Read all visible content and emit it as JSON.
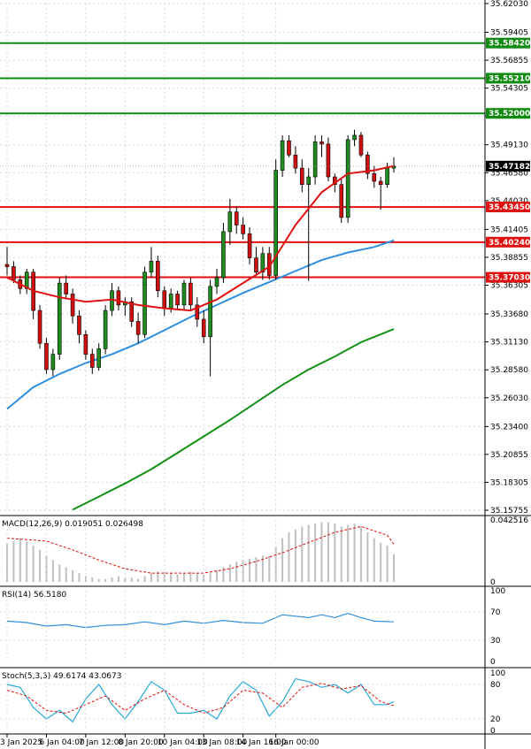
{
  "chart_data": {
    "type": "candlestick",
    "main": {
      "y_ticks": [
        "35.62030",
        "35.59405",
        "35.56855",
        "35.54305",
        "35.51755",
        "35.49130",
        "35.46580",
        "35.44030",
        "35.41405",
        "35.38855",
        "35.36305",
        "35.33680",
        "35.31130",
        "35.28580",
        "35.26030",
        "35.23400",
        "35.20855",
        "35.18305",
        "35.15755"
      ],
      "ylim": [
        35.15755,
        35.6203
      ],
      "current_price": "35.47182",
      "green_levels": [
        "35.58420",
        "35.55210",
        "35.52000"
      ],
      "red_levels": [
        "35.43450",
        "35.40240",
        "35.37030"
      ],
      "candles": [
        [
          35.382,
          35.398,
          35.372,
          35.38
        ],
        [
          35.38,
          35.385,
          35.365,
          35.368
        ],
        [
          35.368,
          35.372,
          35.355,
          35.36
        ],
        [
          35.36,
          35.378,
          35.355,
          35.375
        ],
        [
          35.375,
          35.378,
          35.332,
          35.34
        ],
        [
          35.34,
          35.345,
          35.305,
          35.31
        ],
        [
          35.31,
          35.315,
          35.282,
          35.286
        ],
        [
          35.286,
          35.305,
          35.28,
          35.3
        ],
        [
          35.3,
          35.37,
          35.295,
          35.365
        ],
        [
          35.365,
          35.372,
          35.35,
          35.355
        ],
        [
          35.355,
          35.36,
          35.328,
          35.335
        ],
        [
          35.335,
          35.34,
          35.31,
          35.318
        ],
        [
          35.318,
          35.322,
          35.295,
          35.3
        ],
        [
          35.3,
          35.305,
          35.282,
          35.288
        ],
        [
          35.288,
          35.31,
          35.285,
          35.305
        ],
        [
          35.305,
          35.345,
          35.3,
          35.34
        ],
        [
          35.34,
          35.365,
          35.335,
          35.358
        ],
        [
          35.358,
          35.362,
          35.34,
          35.345
        ],
        [
          35.345,
          35.352,
          35.335,
          35.348
        ],
        [
          35.348,
          35.352,
          35.325,
          35.33
        ],
        [
          35.33,
          35.338,
          35.31,
          35.318
        ],
        [
          35.318,
          35.38,
          35.315,
          35.375
        ],
        [
          35.375,
          35.398,
          35.37,
          35.385
        ],
        [
          35.385,
          35.39,
          35.352,
          35.358
        ],
        [
          35.358,
          35.362,
          35.335,
          35.342
        ],
        [
          35.342,
          35.36,
          35.338,
          35.355
        ],
        [
          35.355,
          35.358,
          35.34,
          35.345
        ],
        [
          35.345,
          35.368,
          35.34,
          35.365
        ],
        [
          35.365,
          35.37,
          35.34,
          35.345
        ],
        [
          35.345,
          35.352,
          35.325,
          35.332
        ],
        [
          35.332,
          35.34,
          35.31,
          35.316
        ],
        [
          35.316,
          35.368,
          35.28,
          35.362
        ],
        [
          35.362,
          35.378,
          35.355,
          35.37
        ],
        [
          35.37,
          35.42,
          35.365,
          35.412
        ],
        [
          35.412,
          35.442,
          35.4,
          35.43
        ],
        [
          35.43,
          35.435,
          35.41,
          35.418
        ],
        [
          35.418,
          35.425,
          35.405,
          35.41
        ],
        [
          35.41,
          35.416,
          35.382,
          35.388
        ],
        [
          35.388,
          35.398,
          35.372,
          35.375
        ],
        [
          35.375,
          35.398,
          35.368,
          35.392
        ],
        [
          35.392,
          35.398,
          35.368,
          35.372
        ],
        [
          35.372,
          35.478,
          35.368,
          35.468
        ],
        [
          35.468,
          35.5,
          35.462,
          35.495
        ],
        [
          35.495,
          35.5,
          35.48,
          35.482
        ],
        [
          35.482,
          35.49,
          35.465,
          35.47
        ],
        [
          35.47,
          35.478,
          35.448,
          35.455
        ],
        [
          35.455,
          35.47,
          35.367,
          35.462
        ],
        [
          35.462,
          35.5,
          35.455,
          35.494
        ],
        [
          35.494,
          35.5,
          35.48,
          35.492
        ],
        [
          35.492,
          35.498,
          35.458,
          35.462
        ],
        [
          35.462,
          35.465,
          35.448,
          35.455
        ],
        [
          35.455,
          35.46,
          35.42,
          35.425
        ],
        [
          35.425,
          35.5,
          35.42,
          35.496
        ],
        [
          35.496,
          35.505,
          35.49,
          35.5
        ],
        [
          35.5,
          35.503,
          35.48,
          35.482
        ],
        [
          35.482,
          35.485,
          35.46,
          35.465
        ],
        [
          35.465,
          35.472,
          35.452,
          35.458
        ],
        [
          35.458,
          35.462,
          35.432,
          35.455
        ],
        [
          35.455,
          35.475,
          35.452,
          35.47
        ],
        [
          35.47,
          35.48,
          35.466,
          35.4718
        ]
      ],
      "ema_fast": [
        [
          0,
          35.37
        ],
        [
          4,
          35.358
        ],
        [
          8,
          35.352
        ],
        [
          12,
          35.348
        ],
        [
          16,
          35.35
        ],
        [
          20,
          35.345
        ],
        [
          24,
          35.342
        ],
        [
          28,
          35.34
        ],
        [
          32,
          35.35
        ],
        [
          36,
          35.365
        ],
        [
          40,
          35.38
        ],
        [
          44,
          35.418
        ],
        [
          48,
          35.448
        ],
        [
          52,
          35.465
        ],
        [
          56,
          35.468
        ],
        [
          59,
          35.472
        ]
      ],
      "ema_mid": [
        [
          0,
          35.25
        ],
        [
          4,
          35.27
        ],
        [
          8,
          35.282
        ],
        [
          12,
          35.292
        ],
        [
          16,
          35.3
        ],
        [
          20,
          35.31
        ],
        [
          24,
          35.322
        ],
        [
          28,
          35.334
        ],
        [
          32,
          35.345
        ],
        [
          36,
          35.356
        ],
        [
          40,
          35.366
        ],
        [
          44,
          35.376
        ],
        [
          48,
          35.386
        ],
        [
          52,
          35.393
        ],
        [
          56,
          35.398
        ],
        [
          59,
          35.404
        ]
      ],
      "ema_slow": [
        [
          10,
          35.158
        ],
        [
          14,
          35.17
        ],
        [
          18,
          35.182
        ],
        [
          22,
          35.195
        ],
        [
          26,
          35.21
        ],
        [
          30,
          35.225
        ],
        [
          34,
          35.24
        ],
        [
          38,
          35.256
        ],
        [
          42,
          35.272
        ],
        [
          46,
          35.286
        ],
        [
          50,
          35.298
        ],
        [
          54,
          35.311
        ],
        [
          59,
          35.323
        ]
      ]
    },
    "macd": {
      "label": "MACD(12,26,9) 0.019051 0.026498",
      "y_ticks": [
        "0.042516",
        "0"
      ],
      "ylim": [
        0,
        0.042516
      ],
      "hist": [
        0.026,
        0.028,
        0.03,
        0.028,
        0.025,
        0.022,
        0.018,
        0.015,
        0.012,
        0.01,
        0.008,
        0.006,
        0.004,
        0.003,
        0.002,
        0.002,
        0.003,
        0.004,
        0.003,
        0.003,
        0.002,
        0.004,
        0.006,
        0.007,
        0.007,
        0.006,
        0.005,
        0.006,
        0.007,
        0.006,
        0.005,
        0.006,
        0.008,
        0.01,
        0.012,
        0.014,
        0.015,
        0.016,
        0.017,
        0.018,
        0.018,
        0.024,
        0.03,
        0.034,
        0.036,
        0.038,
        0.039,
        0.04,
        0.041,
        0.041,
        0.04,
        0.038,
        0.039,
        0.04,
        0.038,
        0.034,
        0.03,
        0.027,
        0.025,
        0.019
      ],
      "signal": [
        [
          0,
          0.03
        ],
        [
          6,
          0.028
        ],
        [
          10,
          0.022
        ],
        [
          14,
          0.015
        ],
        [
          18,
          0.009
        ],
        [
          22,
          0.006
        ],
        [
          26,
          0.006
        ],
        [
          30,
          0.006
        ],
        [
          34,
          0.009
        ],
        [
          38,
          0.014
        ],
        [
          42,
          0.02
        ],
        [
          46,
          0.027
        ],
        [
          50,
          0.034
        ],
        [
          54,
          0.038
        ],
        [
          58,
          0.032
        ],
        [
          59,
          0.026
        ]
      ]
    },
    "rsi": {
      "label": "RSI(14) 56.5180",
      "y_ticks": [
        "100",
        "70",
        "30",
        "0"
      ],
      "ylim": [
        0,
        100
      ],
      "values": [
        [
          0,
          57
        ],
        [
          3,
          55
        ],
        [
          6,
          50
        ],
        [
          9,
          52
        ],
        [
          12,
          48
        ],
        [
          15,
          51
        ],
        [
          18,
          52
        ],
        [
          21,
          56
        ],
        [
          24,
          52
        ],
        [
          27,
          57
        ],
        [
          30,
          54
        ],
        [
          33,
          58
        ],
        [
          36,
          55
        ],
        [
          39,
          54
        ],
        [
          42,
          66
        ],
        [
          44,
          64
        ],
        [
          46,
          62
        ],
        [
          48,
          66
        ],
        [
          50,
          62
        ],
        [
          52,
          68
        ],
        [
          54,
          62
        ],
        [
          56,
          57
        ],
        [
          59,
          56
        ]
      ]
    },
    "stoch": {
      "label": "Stoch(5,3,3) 49.6174 43.0673",
      "y_ticks": [
        "100",
        "80",
        "20",
        "0"
      ],
      "ylim": [
        0,
        100
      ],
      "k": [
        [
          0,
          80
        ],
        [
          2,
          75
        ],
        [
          4,
          40
        ],
        [
          6,
          20
        ],
        [
          8,
          35
        ],
        [
          10,
          15
        ],
        [
          12,
          55
        ],
        [
          14,
          80
        ],
        [
          16,
          45
        ],
        [
          18,
          20
        ],
        [
          20,
          50
        ],
        [
          22,
          85
        ],
        [
          24,
          70
        ],
        [
          26,
          30
        ],
        [
          28,
          30
        ],
        [
          30,
          35
        ],
        [
          32,
          20
        ],
        [
          34,
          60
        ],
        [
          36,
          85
        ],
        [
          38,
          70
        ],
        [
          40,
          25
        ],
        [
          42,
          50
        ],
        [
          44,
          90
        ],
        [
          46,
          85
        ],
        [
          48,
          75
        ],
        [
          50,
          80
        ],
        [
          52,
          65
        ],
        [
          54,
          80
        ],
        [
          56,
          45
        ],
        [
          58,
          45
        ],
        [
          59,
          50
        ]
      ],
      "d": [
        [
          0,
          70
        ],
        [
          3,
          60
        ],
        [
          6,
          35
        ],
        [
          9,
          30
        ],
        [
          12,
          45
        ],
        [
          15,
          60
        ],
        [
          18,
          35
        ],
        [
          21,
          55
        ],
        [
          24,
          70
        ],
        [
          27,
          45
        ],
        [
          30,
          30
        ],
        [
          33,
          40
        ],
        [
          36,
          70
        ],
        [
          39,
          65
        ],
        [
          42,
          40
        ],
        [
          45,
          75
        ],
        [
          48,
          82
        ],
        [
          51,
          72
        ],
        [
          54,
          78
        ],
        [
          57,
          50
        ],
        [
          59,
          43
        ]
      ]
    },
    "x_ticks": [
      {
        "i": 0,
        "label": "3 Jan 2025"
      },
      {
        "i": 6,
        "label": "6 Jan 04:00"
      },
      {
        "i": 12,
        "label": "7 Jan 12:00"
      },
      {
        "i": 18,
        "label": "8 Jan 20:00"
      },
      {
        "i": 24,
        "label": "10 Jan 04:00"
      },
      {
        "i": 30,
        "label": "13 Jan 08:00"
      },
      {
        "i": 36,
        "label": "14 Jan 16:00"
      },
      {
        "i": 41,
        "label": "16 Jan 00:00"
      }
    ],
    "colors": {
      "up": "#1e8c1e",
      "down": "#d01010",
      "ema_fast": "#e01010",
      "ema_mid": "#2e8fe0",
      "ema_slow": "#129012",
      "green_level": "#108a10",
      "red_level": "#e01010",
      "hist": "#bfbfbf",
      "signal": "#e01010",
      "rsi": "#2e8fe0",
      "stoch_k": "#2aa9d8",
      "stoch_d": "#e01010",
      "grid": "#d9d9d9"
    }
  }
}
